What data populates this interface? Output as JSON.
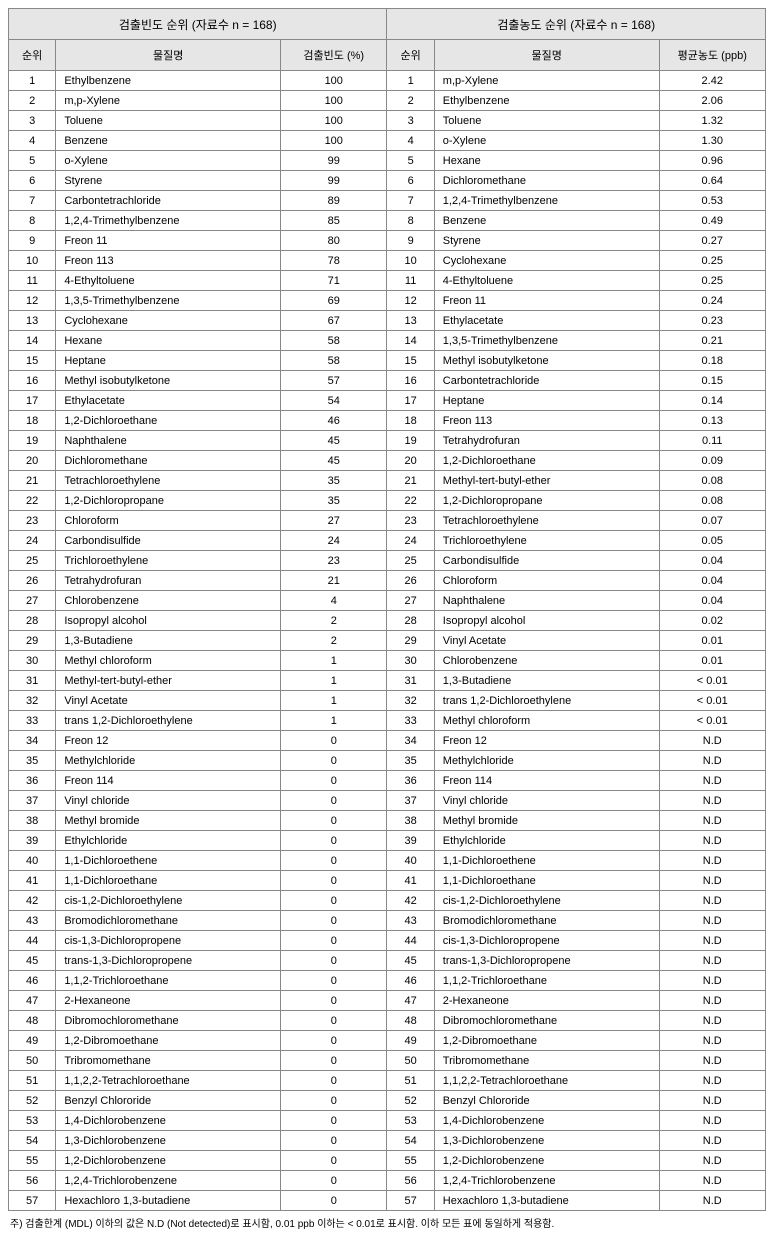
{
  "header": {
    "left_title": "검출빈도 순위 (자료수 n = 168)",
    "right_title": "검출농도 순위 (자료수 n = 168)",
    "col_rank": "순위",
    "col_name": "물질명",
    "col_freq": "검출빈도 (%)",
    "col_conc": "평균농도 (ppb)"
  },
  "footnote": "주) 검출한계 (MDL) 이하의 값은 N.D (Not detected)로 표시함, 0.01 ppb 이하는 < 0.01로 표시함. 이하 모든 표에 동일하게 적용함.",
  "rows": [
    {
      "r1": "1",
      "n1": "Ethylbenzene",
      "v1": "100",
      "r2": "1",
      "n2": "m,p-Xylene",
      "v2": "2.42"
    },
    {
      "r1": "2",
      "n1": "m,p-Xylene",
      "v1": "100",
      "r2": "2",
      "n2": "Ethylbenzene",
      "v2": "2.06"
    },
    {
      "r1": "3",
      "n1": "Toluene",
      "v1": "100",
      "r2": "3",
      "n2": "Toluene",
      "v2": "1.32"
    },
    {
      "r1": "4",
      "n1": "Benzene",
      "v1": "100",
      "r2": "4",
      "n2": "o-Xylene",
      "v2": "1.30"
    },
    {
      "r1": "5",
      "n1": "o-Xylene",
      "v1": "99",
      "r2": "5",
      "n2": "Hexane",
      "v2": "0.96"
    },
    {
      "r1": "6",
      "n1": "Styrene",
      "v1": "99",
      "r2": "6",
      "n2": "Dichloromethane",
      "v2": "0.64"
    },
    {
      "r1": "7",
      "n1": "Carbontetrachloride",
      "v1": "89",
      "r2": "7",
      "n2": "1,2,4-Trimethylbenzene",
      "v2": "0.53"
    },
    {
      "r1": "8",
      "n1": "1,2,4-Trimethylbenzene",
      "v1": "85",
      "r2": "8",
      "n2": "Benzene",
      "v2": "0.49"
    },
    {
      "r1": "9",
      "n1": "Freon 11",
      "v1": "80",
      "r2": "9",
      "n2": "Styrene",
      "v2": "0.27"
    },
    {
      "r1": "10",
      "n1": "Freon 113",
      "v1": "78",
      "r2": "10",
      "n2": "Cyclohexane",
      "v2": "0.25"
    },
    {
      "r1": "11",
      "n1": "4-Ethyltoluene",
      "v1": "71",
      "r2": "11",
      "n2": "4-Ethyltoluene",
      "v2": "0.25"
    },
    {
      "r1": "12",
      "n1": "1,3,5-Trimethylbenzene",
      "v1": "69",
      "r2": "12",
      "n2": "Freon 11",
      "v2": "0.24"
    },
    {
      "r1": "13",
      "n1": "Cyclohexane",
      "v1": "67",
      "r2": "13",
      "n2": "Ethylacetate",
      "v2": "0.23"
    },
    {
      "r1": "14",
      "n1": "Hexane",
      "v1": "58",
      "r2": "14",
      "n2": "1,3,5-Trimethylbenzene",
      "v2": "0.21"
    },
    {
      "r1": "15",
      "n1": "Heptane",
      "v1": "58",
      "r2": "15",
      "n2": "Methyl isobutylketone",
      "v2": "0.18"
    },
    {
      "r1": "16",
      "n1": "Methyl isobutylketone",
      "v1": "57",
      "r2": "16",
      "n2": "Carbontetrachloride",
      "v2": "0.15"
    },
    {
      "r1": "17",
      "n1": "Ethylacetate",
      "v1": "54",
      "r2": "17",
      "n2": "Heptane",
      "v2": "0.14"
    },
    {
      "r1": "18",
      "n1": "1,2-Dichloroethane",
      "v1": "46",
      "r2": "18",
      "n2": "Freon 113",
      "v2": "0.13"
    },
    {
      "r1": "19",
      "n1": "Naphthalene",
      "v1": "45",
      "r2": "19",
      "n2": "Tetrahydrofuran",
      "v2": "0.11"
    },
    {
      "r1": "20",
      "n1": "Dichloromethane",
      "v1": "45",
      "r2": "20",
      "n2": "1,2-Dichloroethane",
      "v2": "0.09"
    },
    {
      "r1": "21",
      "n1": "Tetrachloroethylene",
      "v1": "35",
      "r2": "21",
      "n2": "Methyl-tert-butyl-ether",
      "v2": "0.08"
    },
    {
      "r1": "22",
      "n1": "1,2-Dichloropropane",
      "v1": "35",
      "r2": "22",
      "n2": "1,2-Dichloropropane",
      "v2": "0.08"
    },
    {
      "r1": "23",
      "n1": "Chloroform",
      "v1": "27",
      "r2": "23",
      "n2": "Tetrachloroethylene",
      "v2": "0.07"
    },
    {
      "r1": "24",
      "n1": "Carbondisulfide",
      "v1": "24",
      "r2": "24",
      "n2": "Trichloroethylene",
      "v2": "0.05"
    },
    {
      "r1": "25",
      "n1": "Trichloroethylene",
      "v1": "23",
      "r2": "25",
      "n2": "Carbondisulfide",
      "v2": "0.04"
    },
    {
      "r1": "26",
      "n1": "Tetrahydrofuran",
      "v1": "21",
      "r2": "26",
      "n2": "Chloroform",
      "v2": "0.04"
    },
    {
      "r1": "27",
      "n1": "Chlorobenzene",
      "v1": "4",
      "r2": "27",
      "n2": "Naphthalene",
      "v2": "0.04"
    },
    {
      "r1": "28",
      "n1": "Isopropyl alcohol",
      "v1": "2",
      "r2": "28",
      "n2": "Isopropyl alcohol",
      "v2": "0.02"
    },
    {
      "r1": "29",
      "n1": "1,3-Butadiene",
      "v1": "2",
      "r2": "29",
      "n2": "Vinyl Acetate",
      "v2": "0.01"
    },
    {
      "r1": "30",
      "n1": "Methyl chloroform",
      "v1": "1",
      "r2": "30",
      "n2": "Chlorobenzene",
      "v2": "0.01"
    },
    {
      "r1": "31",
      "n1": "Methyl-tert-butyl-ether",
      "v1": "1",
      "r2": "31",
      "n2": "1,3-Butadiene",
      "v2": "< 0.01"
    },
    {
      "r1": "32",
      "n1": "Vinyl Acetate",
      "v1": "1",
      "r2": "32",
      "n2": "trans 1,2-Dichloroethylene",
      "v2": "< 0.01"
    },
    {
      "r1": "33",
      "n1": "trans 1,2-Dichloroethylene",
      "v1": "1",
      "r2": "33",
      "n2": "Methyl chloroform",
      "v2": "< 0.01"
    },
    {
      "r1": "34",
      "n1": "Freon 12",
      "v1": "0",
      "r2": "34",
      "n2": "Freon 12",
      "v2": "N.D"
    },
    {
      "r1": "35",
      "n1": "Methylchloride",
      "v1": "0",
      "r2": "35",
      "n2": "Methylchloride",
      "v2": "N.D"
    },
    {
      "r1": "36",
      "n1": "Freon 114",
      "v1": "0",
      "r2": "36",
      "n2": "Freon 114",
      "v2": "N.D"
    },
    {
      "r1": "37",
      "n1": "Vinyl chloride",
      "v1": "0",
      "r2": "37",
      "n2": "Vinyl chloride",
      "v2": "N.D"
    },
    {
      "r1": "38",
      "n1": "Methyl bromide",
      "v1": "0",
      "r2": "38",
      "n2": "Methyl bromide",
      "v2": "N.D"
    },
    {
      "r1": "39",
      "n1": "Ethylchloride",
      "v1": "0",
      "r2": "39",
      "n2": "Ethylchloride",
      "v2": "N.D"
    },
    {
      "r1": "40",
      "n1": "1,1-Dichloroethene",
      "v1": "0",
      "r2": "40",
      "n2": "1,1-Dichloroethene",
      "v2": "N.D"
    },
    {
      "r1": "41",
      "n1": "1,1-Dichloroethane",
      "v1": "0",
      "r2": "41",
      "n2": "1,1-Dichloroethane",
      "v2": "N.D"
    },
    {
      "r1": "42",
      "n1": "cis-1,2-Dichloroethylene",
      "v1": "0",
      "r2": "42",
      "n2": "cis-1,2-Dichloroethylene",
      "v2": "N.D"
    },
    {
      "r1": "43",
      "n1": "Bromodichloromethane",
      "v1": "0",
      "r2": "43",
      "n2": "Bromodichloromethane",
      "v2": "N.D"
    },
    {
      "r1": "44",
      "n1": "cis-1,3-Dichloropropene",
      "v1": "0",
      "r2": "44",
      "n2": "cis-1,3-Dichloropropene",
      "v2": "N.D"
    },
    {
      "r1": "45",
      "n1": "trans-1,3-Dichloropropene",
      "v1": "0",
      "r2": "45",
      "n2": "trans-1,3-Dichloropropene",
      "v2": "N.D"
    },
    {
      "r1": "46",
      "n1": "1,1,2-Trichloroethane",
      "v1": "0",
      "r2": "46",
      "n2": "1,1,2-Trichloroethane",
      "v2": "N.D"
    },
    {
      "r1": "47",
      "n1": "2-Hexaneone",
      "v1": "0",
      "r2": "47",
      "n2": "2-Hexaneone",
      "v2": "N.D"
    },
    {
      "r1": "48",
      "n1": "Dibromochloromethane",
      "v1": "0",
      "r2": "48",
      "n2": "Dibromochloromethane",
      "v2": "N.D"
    },
    {
      "r1": "49",
      "n1": "1,2-Dibromoethane",
      "v1": "0",
      "r2": "49",
      "n2": "1,2-Dibromoethane",
      "v2": "N.D"
    },
    {
      "r1": "50",
      "n1": "Tribromomethane",
      "v1": "0",
      "r2": "50",
      "n2": "Tribromomethane",
      "v2": "N.D"
    },
    {
      "r1": "51",
      "n1": "1,1,2,2-Tetrachloroethane",
      "v1": "0",
      "r2": "51",
      "n2": "1,1,2,2-Tetrachloroethane",
      "v2": "N.D"
    },
    {
      "r1": "52",
      "n1": "Benzyl Chlororide",
      "v1": "0",
      "r2": "52",
      "n2": "Benzyl Chlororide",
      "v2": "N.D"
    },
    {
      "r1": "53",
      "n1": "1,4-Dichlorobenzene",
      "v1": "0",
      "r2": "53",
      "n2": "1,4-Dichlorobenzene",
      "v2": "N.D"
    },
    {
      "r1": "54",
      "n1": "1,3-Dichlorobenzene",
      "v1": "0",
      "r2": "54",
      "n2": "1,3-Dichlorobenzene",
      "v2": "N.D"
    },
    {
      "r1": "55",
      "n1": "1,2-Dichlorobenzene",
      "v1": "0",
      "r2": "55",
      "n2": "1,2-Dichlorobenzene",
      "v2": "N.D"
    },
    {
      "r1": "56",
      "n1": "1,2,4-Trichlorobenzene",
      "v1": "0",
      "r2": "56",
      "n2": "1,2,4-Trichlorobenzene",
      "v2": "N.D"
    },
    {
      "r1": "57",
      "n1": "Hexachloro 1,3-butadiene",
      "v1": "0",
      "r2": "57",
      "n2": "Hexachloro 1,3-butadiene",
      "v2": "N.D"
    }
  ]
}
